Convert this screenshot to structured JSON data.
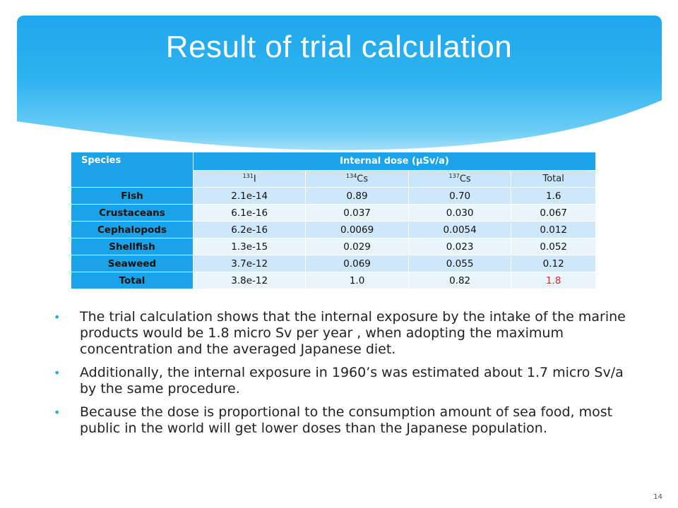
{
  "slide": {
    "title": "Result of trial calculation",
    "page_number": "14",
    "accent_color": "#1aa3e8"
  },
  "table": {
    "header_species": "Species",
    "header_dose": "Internal dose (μSv/a)",
    "sub_headers": [
      {
        "sup": "131",
        "text": "I"
      },
      {
        "sup": "134",
        "text": "Cs"
      },
      {
        "sup": "137",
        "text": "Cs"
      },
      {
        "sup": "",
        "text": "Total"
      }
    ],
    "rows": [
      {
        "label": "Fish",
        "values": [
          "2.1e-14",
          "0.89",
          "0.70",
          "1.6"
        ]
      },
      {
        "label": "Crustaceans",
        "values": [
          "6.1e-16",
          "0.037",
          "0.030",
          "0.067"
        ]
      },
      {
        "label": "Cephalopods",
        "values": [
          "6.2e-16",
          "0.0069",
          "0.0054",
          "0.012"
        ]
      },
      {
        "label": "Shellfish",
        "values": [
          "1.3e-15",
          "0.029",
          "0.023",
          "0.052"
        ]
      },
      {
        "label": "Seaweed",
        "values": [
          "3.7e-12",
          "0.069",
          "0.055",
          "0.12"
        ]
      },
      {
        "label": "Total",
        "values": [
          "3.8e-12",
          "1.0",
          "0.82",
          "1.8"
        ]
      }
    ],
    "highlight_color": "#e0241f"
  },
  "bullets": [
    "The trial calculation shows that the internal exposure by the intake of the marine products would be 1.8 micro Sv per year , when adopting the maximum concentration and the averaged Japanese diet.",
    "Additionally, the internal exposure in 1960’s was estimated about 1.7 micro Sv/a by the same procedure.",
    "Because the dose is proportional to the consumption amount of sea food, most public in the world will get lower doses than the Japanese population."
  ]
}
